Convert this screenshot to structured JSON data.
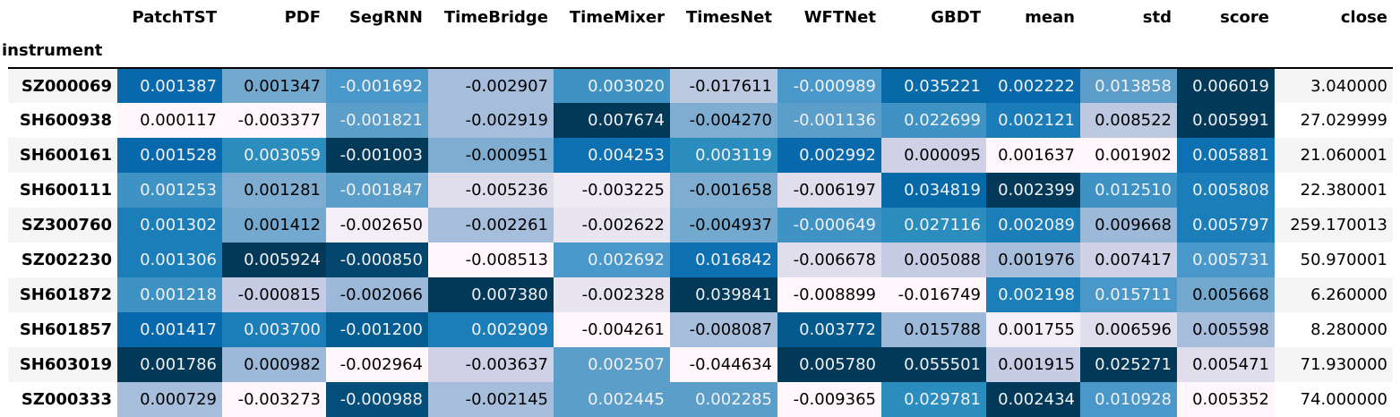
{
  "index_name": "instrument",
  "columns": [
    "PatchTST",
    "PDF",
    "SegRNN",
    "TimeBridge",
    "TimeMixer",
    "TimesNet",
    "WFTNet",
    "GBDT",
    "mean",
    "std",
    "score",
    "close"
  ],
  "rows": [
    {
      "instrument": "SZ000069",
      "values": [
        "0.001387",
        "0.001347",
        "-0.001692",
        "-0.002907",
        "0.003020",
        "-0.017611",
        "-0.000989",
        "0.035221",
        "0.002222",
        "0.013858",
        "0.006019",
        "3.040000"
      ],
      "colors": [
        "#0868ac",
        "#74a9cf",
        "#4a98c9",
        "#a6bddb",
        "#3f93c4",
        "#bdc9e1",
        "#4a98c9",
        "#0569a8",
        "#0868ac",
        "#5c9ec9",
        "#023858",
        null
      ]
    },
    {
      "instrument": "SH600938",
      "values": [
        "0.000117",
        "-0.003377",
        "-0.001821",
        "-0.002919",
        "0.007674",
        "-0.004270",
        "-0.001136",
        "0.022699",
        "0.002121",
        "0.008522",
        "0.005991",
        "27.029999"
      ],
      "colors": [
        "#fff7fb",
        "#fff7fb",
        "#5a9ec9",
        "#a6bddb",
        "#023858",
        "#7eadd1",
        "#5a9ec9",
        "#3f93c4",
        "#1a7cb8",
        "#bdc9e1",
        "#023858",
        null
      ]
    },
    {
      "instrument": "SH600161",
      "values": [
        "0.001528",
        "0.003059",
        "-0.001003",
        "-0.000951",
        "0.004253",
        "0.003119",
        "0.002992",
        "0.000095",
        "0.001637",
        "0.001902",
        "0.005881",
        "21.060001"
      ],
      "colors": [
        "#0868ac",
        "#2b8cbe",
        "#023858",
        "#7eadd1",
        "#0d70b1",
        "#2b8cbe",
        "#0868ac",
        "#d0d1e6",
        "#fff7fb",
        "#fff7fb",
        "#0d70b1",
        null
      ]
    },
    {
      "instrument": "SH600111",
      "values": [
        "0.001253",
        "0.001281",
        "-0.001847",
        "-0.005236",
        "-0.003225",
        "-0.001658",
        "-0.006197",
        "0.034819",
        "0.002399",
        "0.012510",
        "0.005808",
        "22.380001"
      ],
      "colors": [
        "#3f93c4",
        "#7eadd1",
        "#5a9ec9",
        "#e0deed",
        "#f0eaf4",
        "#7eadd1",
        "#e0deed",
        "#0569a8",
        "#023858",
        "#3f93c4",
        "#1b7eb8",
        null
      ]
    },
    {
      "instrument": "SZ300760",
      "values": [
        "0.001302",
        "0.001412",
        "-0.002650",
        "-0.002261",
        "-0.002622",
        "-0.004937",
        "-0.000649",
        "0.027116",
        "0.002089",
        "0.009668",
        "0.005797",
        "259.170013"
      ],
      "colors": [
        "#1b7eb8",
        "#74a9cf",
        "#f4eef6",
        "#a6bddb",
        "#e8e4f0",
        "#74a9cf",
        "#3f93c4",
        "#2b8cbe",
        "#1b7eb8",
        "#9cb9d9",
        "#1b7eb8",
        null
      ]
    },
    {
      "instrument": "SZ002230",
      "values": [
        "0.001306",
        "0.005924",
        "-0.000850",
        "-0.008513",
        "0.002692",
        "0.016842",
        "-0.006678",
        "0.005088",
        "0.001976",
        "0.007417",
        "0.005731",
        "50.970001"
      ],
      "colors": [
        "#1b7eb8",
        "#023858",
        "#03466e",
        "#fff7fb",
        "#4a98c9",
        "#0d70b1",
        "#e0deed",
        "#c5cce3",
        "#a6bddb",
        "#d0d1e6",
        "#4a98c9",
        null
      ]
    },
    {
      "instrument": "SH601872",
      "values": [
        "0.001218",
        "-0.000815",
        "-0.002066",
        "0.007380",
        "-0.002328",
        "0.039841",
        "-0.008899",
        "-0.016749",
        "0.002198",
        "0.015711",
        "0.005668",
        "6.260000"
      ],
      "colors": [
        "#3f93c4",
        "#c5cce3",
        "#9cb9d9",
        "#023858",
        "#e8e4f0",
        "#023858",
        "#fff7fb",
        "#fff7fb",
        "#1b7eb8",
        "#4a98c9",
        "#74a9cf",
        null
      ]
    },
    {
      "instrument": "SH601857",
      "values": [
        "0.001417",
        "0.003700",
        "-0.001200",
        "0.002909",
        "-0.004261",
        "-0.008087",
        "0.003772",
        "0.015788",
        "0.001755",
        "0.006596",
        "0.005598",
        "8.280000"
      ],
      "colors": [
        "#0868ac",
        "#1b7eb8",
        "#045d92",
        "#1b7eb8",
        "#fff7fb",
        "#a6bddb",
        "#045a8d",
        "#9cb9d9",
        "#f4eef6",
        "#e0deed",
        "#a6bddb",
        null
      ]
    },
    {
      "instrument": "SH603019",
      "values": [
        "0.001786",
        "0.000982",
        "-0.002964",
        "-0.003637",
        "0.002507",
        "-0.044634",
        "0.005780",
        "0.055501",
        "0.001915",
        "0.025271",
        "0.005471",
        "71.930000"
      ],
      "colors": [
        "#023858",
        "#9cb9d9",
        "#fff7fb",
        "#d0d1e6",
        "#5a9ec9",
        "#fff7fb",
        "#023858",
        "#023858",
        "#c5cce3",
        "#023858",
        "#e0deed",
        null
      ]
    },
    {
      "instrument": "SZ000333",
      "values": [
        "0.000729",
        "-0.003273",
        "-0.000988",
        "-0.002145",
        "0.002445",
        "0.002285",
        "-0.009365",
        "0.029781",
        "0.002434",
        "0.010928",
        "0.005352",
        "74.000000"
      ],
      "colors": [
        "#a6bddb",
        "#fff7fb",
        "#034e7b",
        "#a6bddb",
        "#5a9ec9",
        "#5a9ec9",
        "#fff7fb",
        "#2b8cbe",
        "#023858",
        "#4a98c9",
        "#fff7fb",
        null
      ]
    }
  ]
}
